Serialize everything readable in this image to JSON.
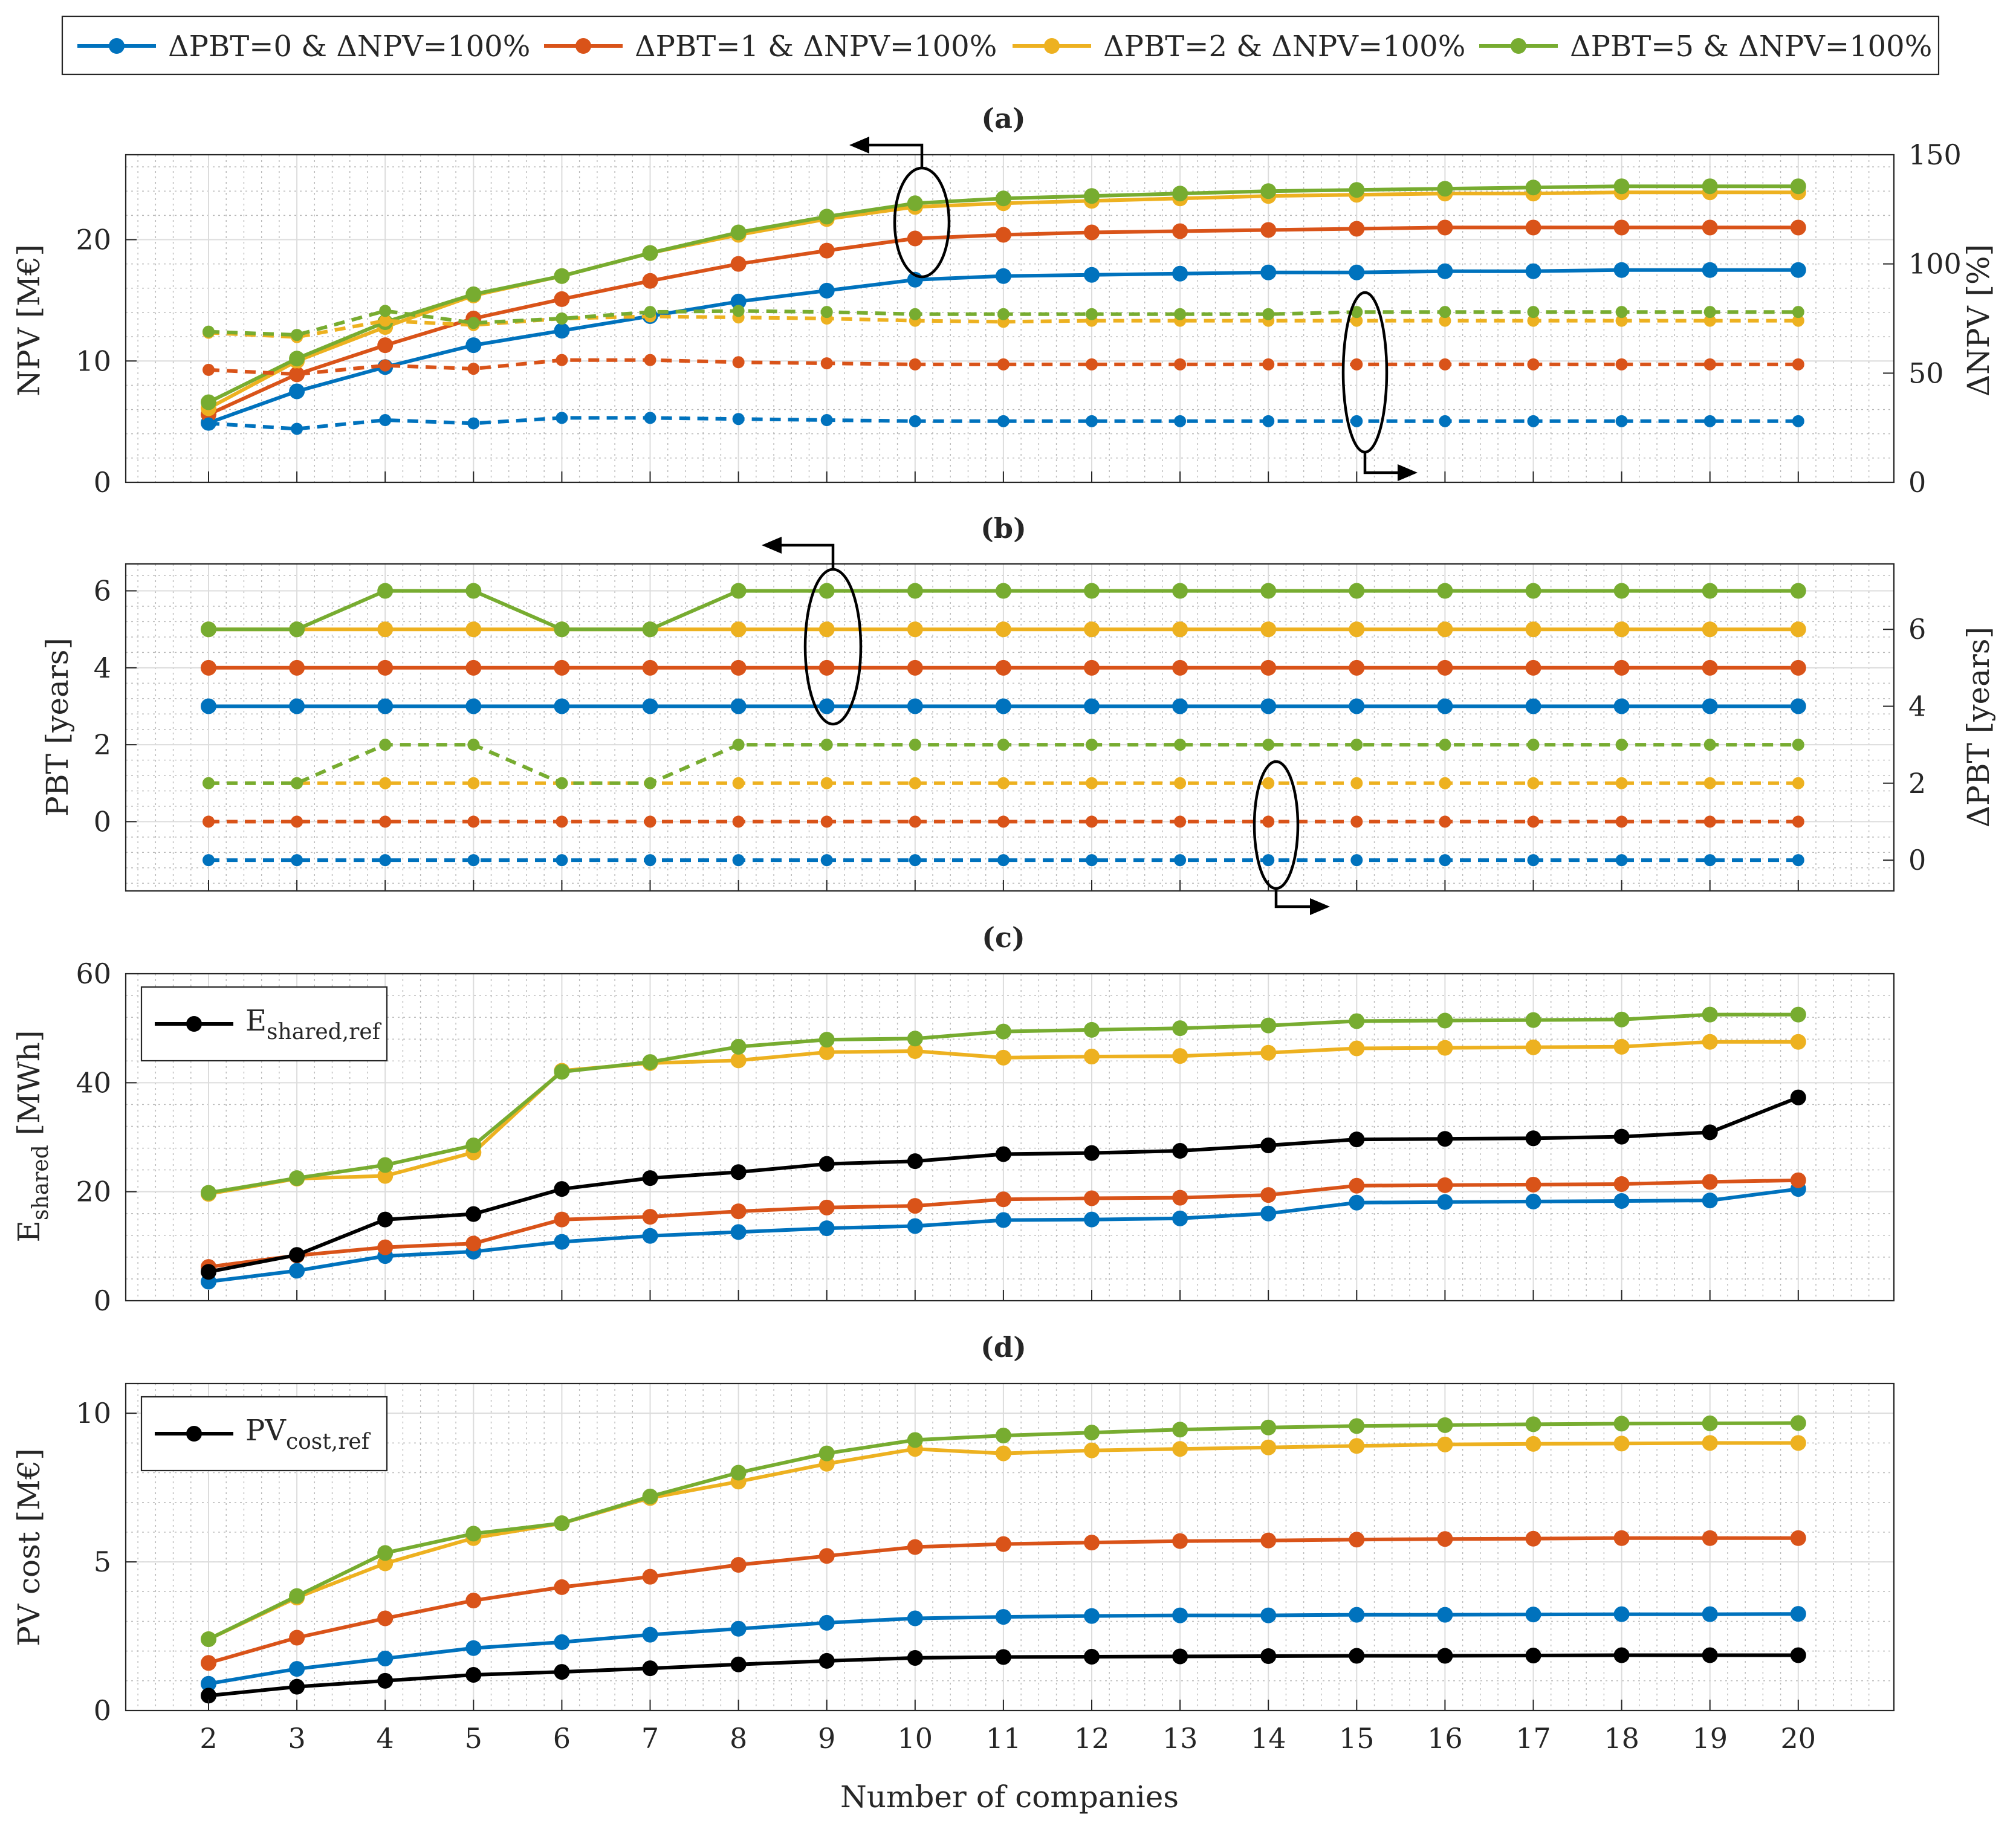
{
  "chart_data": {
    "type": "line",
    "xlabel": "Number of companies",
    "x": [
      2,
      3,
      4,
      5,
      6,
      7,
      8,
      9,
      10,
      11,
      12,
      13,
      14,
      15,
      16,
      17,
      18,
      19,
      20
    ],
    "legend": {
      "placement": "top-center",
      "entries": [
        "ΔPBT=0 & ΔNPV=100%",
        "ΔPBT=1 & ΔNPV=100%",
        "ΔPBT=2 & ΔNPV=100%",
        "ΔPBT=5 & ΔNPV=100%"
      ]
    },
    "colors": {
      "blue": "#0072bd",
      "orange": "#d95319",
      "yellow": "#edb120",
      "green": "#77ac30",
      "black": "#000000"
    },
    "panels": [
      {
        "id": "a",
        "title": "(a)",
        "ylabel": "NPV [M€]",
        "ylim": [
          0,
          27
        ],
        "yticks": [
          0,
          10,
          20
        ],
        "y2label": "ΔNPV [%]",
        "y2lim": [
          0,
          150
        ],
        "y2ticks": [
          0,
          50,
          100,
          150
        ],
        "series": [
          {
            "name": "ΔPBT=0 & ΔNPV=100%",
            "color": "#0072bd",
            "axis": "left",
            "style": "solid",
            "values": [
              4.9,
              7.5,
              9.5,
              11.3,
              12.5,
              13.7,
              14.9,
              15.8,
              16.7,
              17.0,
              17.1,
              17.2,
              17.3,
              17.3,
              17.4,
              17.4,
              17.5,
              17.5,
              17.5
            ]
          },
          {
            "name": "ΔPBT=1 & ΔNPV=100%",
            "color": "#d95319",
            "axis": "left",
            "style": "solid",
            "values": [
              5.6,
              8.9,
              11.3,
              13.5,
              15.1,
              16.6,
              18.0,
              19.1,
              20.1,
              20.4,
              20.6,
              20.7,
              20.8,
              20.9,
              21.0,
              21.0,
              21.0,
              21.0,
              21.0
            ]
          },
          {
            "name": "ΔPBT=2 & ΔNPV=100%",
            "color": "#edb120",
            "axis": "left",
            "style": "solid",
            "values": [
              6.1,
              10.0,
              12.8,
              15.4,
              17.0,
              18.9,
              20.4,
              21.7,
              22.7,
              23.0,
              23.2,
              23.4,
              23.6,
              23.7,
              23.8,
              23.8,
              23.9,
              23.9,
              23.9
            ]
          },
          {
            "name": "ΔPBT=5 & ΔNPV=100%",
            "color": "#77ac30",
            "axis": "left",
            "style": "solid",
            "values": [
              6.6,
              10.2,
              13.2,
              15.5,
              17.0,
              18.9,
              20.6,
              21.9,
              23.0,
              23.4,
              23.6,
              23.8,
              24.0,
              24.1,
              24.2,
              24.3,
              24.4,
              24.4,
              24.4
            ]
          },
          {
            "name": "ΔNPV ΔPBT=0",
            "color": "#0072bd",
            "axis": "right",
            "style": "dashed",
            "values": [
              27,
              24.5,
              28.5,
              27,
              29.5,
              29.5,
              29,
              28.5,
              28,
              28,
              28,
              28,
              28,
              28,
              28,
              28,
              28,
              28,
              28
            ]
          },
          {
            "name": "ΔNPV ΔPBT=1",
            "color": "#d95319",
            "axis": "right",
            "style": "dashed",
            "values": [
              51.5,
              49.5,
              53.5,
              52,
              56,
              56,
              55,
              54.5,
              54,
              54,
              54,
              54,
              54,
              54,
              54,
              54,
              54,
              54,
              54
            ]
          },
          {
            "name": "ΔNPV ΔPBT=2",
            "color": "#edb120",
            "axis": "right",
            "style": "dashed",
            "values": [
              68.5,
              66.5,
              74,
              72,
              75,
              76,
              75.5,
              75,
              74,
              73.5,
              74,
              74,
              74,
              74,
              74,
              74,
              74,
              74,
              74
            ]
          },
          {
            "name": "ΔNPV ΔPBT=5",
            "color": "#77ac30",
            "axis": "right",
            "style": "dashed",
            "values": [
              69,
              67.5,
              78.5,
              73,
              75,
              78,
              78.5,
              78,
              77,
              77,
              77,
              77,
              77,
              78,
              78,
              78,
              78,
              78,
              78
            ]
          }
        ]
      },
      {
        "id": "b",
        "title": "(b)",
        "ylabel": "PBT [years]",
        "ylim": [
          -1.8,
          6.7
        ],
        "yticks": [
          0,
          2,
          4,
          6
        ],
        "y2label": "ΔPBT [years]",
        "y2lim": [
          -0.8,
          7.7
        ],
        "y2ticks": [
          0,
          2,
          4,
          6
        ],
        "series": [
          {
            "name": "ΔPBT=0 & ΔNPV=100%",
            "color": "#0072bd",
            "axis": "left",
            "style": "solid",
            "values": [
              3,
              3,
              3,
              3,
              3,
              3,
              3,
              3,
              3,
              3,
              3,
              3,
              3,
              3,
              3,
              3,
              3,
              3,
              3
            ]
          },
          {
            "name": "ΔPBT=1 & ΔNPV=100%",
            "color": "#d95319",
            "axis": "left",
            "style": "solid",
            "values": [
              4,
              4,
              4,
              4,
              4,
              4,
              4,
              4,
              4,
              4,
              4,
              4,
              4,
              4,
              4,
              4,
              4,
              4,
              4
            ]
          },
          {
            "name": "ΔPBT=2 & ΔNPV=100%",
            "color": "#edb120",
            "axis": "left",
            "style": "solid",
            "values": [
              5,
              5,
              5,
              5,
              5,
              5,
              5,
              5,
              5,
              5,
              5,
              5,
              5,
              5,
              5,
              5,
              5,
              5,
              5
            ]
          },
          {
            "name": "ΔPBT=5 & ΔNPV=100%",
            "color": "#77ac30",
            "axis": "left",
            "style": "solid",
            "values": [
              5,
              5,
              6,
              6,
              5,
              5,
              6,
              6,
              6,
              6,
              6,
              6,
              6,
              6,
              6,
              6,
              6,
              6,
              6
            ]
          },
          {
            "name": "ΔPBT ΔPBT=0",
            "color": "#0072bd",
            "axis": "right",
            "style": "dashed",
            "values": [
              0,
              0,
              0,
              0,
              0,
              0,
              0,
              0,
              0,
              0,
              0,
              0,
              0,
              0,
              0,
              0,
              0,
              0,
              0
            ]
          },
          {
            "name": "ΔPBT ΔPBT=1",
            "color": "#d95319",
            "axis": "right",
            "style": "dashed",
            "values": [
              1,
              1,
              1,
              1,
              1,
              1,
              1,
              1,
              1,
              1,
              1,
              1,
              1,
              1,
              1,
              1,
              1,
              1,
              1
            ]
          },
          {
            "name": "ΔPBT ΔPBT=2",
            "color": "#edb120",
            "axis": "right",
            "style": "dashed",
            "values": [
              2,
              2,
              2,
              2,
              2,
              2,
              2,
              2,
              2,
              2,
              2,
              2,
              2,
              2,
              2,
              2,
              2,
              2,
              2
            ]
          },
          {
            "name": "ΔPBT ΔPBT=5",
            "color": "#77ac30",
            "axis": "right",
            "style": "dashed",
            "values": [
              2,
              2,
              3,
              3,
              2,
              2,
              3,
              3,
              3,
              3,
              3,
              3,
              3,
              3,
              3,
              3,
              3,
              3,
              3
            ]
          }
        ]
      },
      {
        "id": "c",
        "title": "(c)",
        "ylabel": "E",
        "ylabel_sub": "shared",
        "ylabel_unit": " [MWh]",
        "ylim": [
          0,
          60
        ],
        "yticks": [
          0,
          20,
          40,
          60
        ],
        "inset_legend": {
          "label": "E",
          "label_sub": "shared,ref",
          "placement": "top-left"
        },
        "series": [
          {
            "name": "ΔPBT=0 & ΔNPV=100%",
            "color": "#0072bd",
            "axis": "left",
            "style": "solid",
            "values": [
              3.5,
              5.5,
              8.2,
              9.0,
              10.8,
              11.9,
              12.6,
              13.3,
              13.7,
              14.8,
              14.9,
              15.1,
              16.0,
              18.0,
              18.1,
              18.2,
              18.3,
              18.4,
              20.5
            ]
          },
          {
            "name": "ΔPBT=1 & ΔNPV=100%",
            "color": "#d95319",
            "axis": "left",
            "style": "solid",
            "values": [
              6.2,
              8.3,
              9.8,
              10.5,
              14.9,
              15.4,
              16.4,
              17.1,
              17.4,
              18.6,
              18.8,
              18.9,
              19.4,
              21.1,
              21.2,
              21.3,
              21.4,
              21.8,
              22.1
            ]
          },
          {
            "name": "ΔPBT=2 & ΔNPV=100%",
            "color": "#edb120",
            "axis": "left",
            "style": "solid",
            "values": [
              19.6,
              22.4,
              22.9,
              27.2,
              42.2,
              43.6,
              44.1,
              45.6,
              45.8,
              44.6,
              44.8,
              44.9,
              45.5,
              46.3,
              46.4,
              46.5,
              46.6,
              47.5,
              47.5
            ]
          },
          {
            "name": "ΔPBT=5 & ΔNPV=100%",
            "color": "#77ac30",
            "axis": "left",
            "style": "solid",
            "values": [
              19.8,
              22.5,
              24.9,
              28.5,
              42.0,
              43.8,
              46.6,
              47.9,
              48.1,
              49.4,
              49.7,
              50.0,
              50.5,
              51.3,
              51.4,
              51.5,
              51.6,
              52.5,
              52.5
            ]
          },
          {
            "name": "E shared,ref",
            "color": "#000000",
            "axis": "left",
            "style": "solid",
            "values": [
              5.3,
              8.4,
              14.9,
              15.9,
              20.5,
              22.5,
              23.6,
              25.1,
              25.6,
              26.9,
              27.1,
              27.5,
              28.5,
              29.6,
              29.7,
              29.8,
              30.1,
              30.9,
              37.3
            ]
          }
        ]
      },
      {
        "id": "d",
        "title": "(d)",
        "ylabel": "PV cost [M€]",
        "ylim": [
          0,
          11
        ],
        "yticks": [
          0,
          5,
          10
        ],
        "inset_legend": {
          "label": "PV",
          "label_sub": "cost,ref",
          "placement": "top-left"
        },
        "series": [
          {
            "name": "ΔPBT=0 & ΔNPV=100%",
            "color": "#0072bd",
            "axis": "left",
            "style": "solid",
            "values": [
              0.9,
              1.4,
              1.75,
              2.1,
              2.3,
              2.55,
              2.75,
              2.95,
              3.1,
              3.15,
              3.18,
              3.2,
              3.2,
              3.22,
              3.22,
              3.23,
              3.24,
              3.24,
              3.25
            ]
          },
          {
            "name": "ΔPBT=1 & ΔNPV=100%",
            "color": "#d95319",
            "axis": "left",
            "style": "solid",
            "values": [
              1.6,
              2.45,
              3.1,
              3.7,
              4.15,
              4.5,
              4.9,
              5.2,
              5.5,
              5.6,
              5.65,
              5.7,
              5.72,
              5.75,
              5.77,
              5.78,
              5.8,
              5.8,
              5.8
            ]
          },
          {
            "name": "ΔPBT=2 & ΔNPV=100%",
            "color": "#edb120",
            "axis": "left",
            "style": "solid",
            "values": [
              2.4,
              3.8,
              4.95,
              5.8,
              6.3,
              7.15,
              7.7,
              8.3,
              8.8,
              8.65,
              8.75,
              8.8,
              8.85,
              8.9,
              8.95,
              8.97,
              8.98,
              9.0,
              9.0
            ]
          },
          {
            "name": "ΔPBT=5 & ΔNPV=100%",
            "color": "#77ac30",
            "axis": "left",
            "style": "solid",
            "values": [
              2.4,
              3.85,
              5.3,
              5.95,
              6.3,
              7.2,
              8.0,
              8.65,
              9.1,
              9.25,
              9.35,
              9.45,
              9.52,
              9.57,
              9.6,
              9.63,
              9.65,
              9.66,
              9.67
            ]
          },
          {
            "name": "PV cost,ref",
            "color": "#000000",
            "axis": "left",
            "style": "solid",
            "values": [
              0.5,
              0.8,
              1.0,
              1.2,
              1.3,
              1.42,
              1.55,
              1.67,
              1.77,
              1.8,
              1.81,
              1.82,
              1.83,
              1.84,
              1.84,
              1.85,
              1.86,
              1.86,
              1.86
            ]
          }
        ]
      }
    ]
  }
}
